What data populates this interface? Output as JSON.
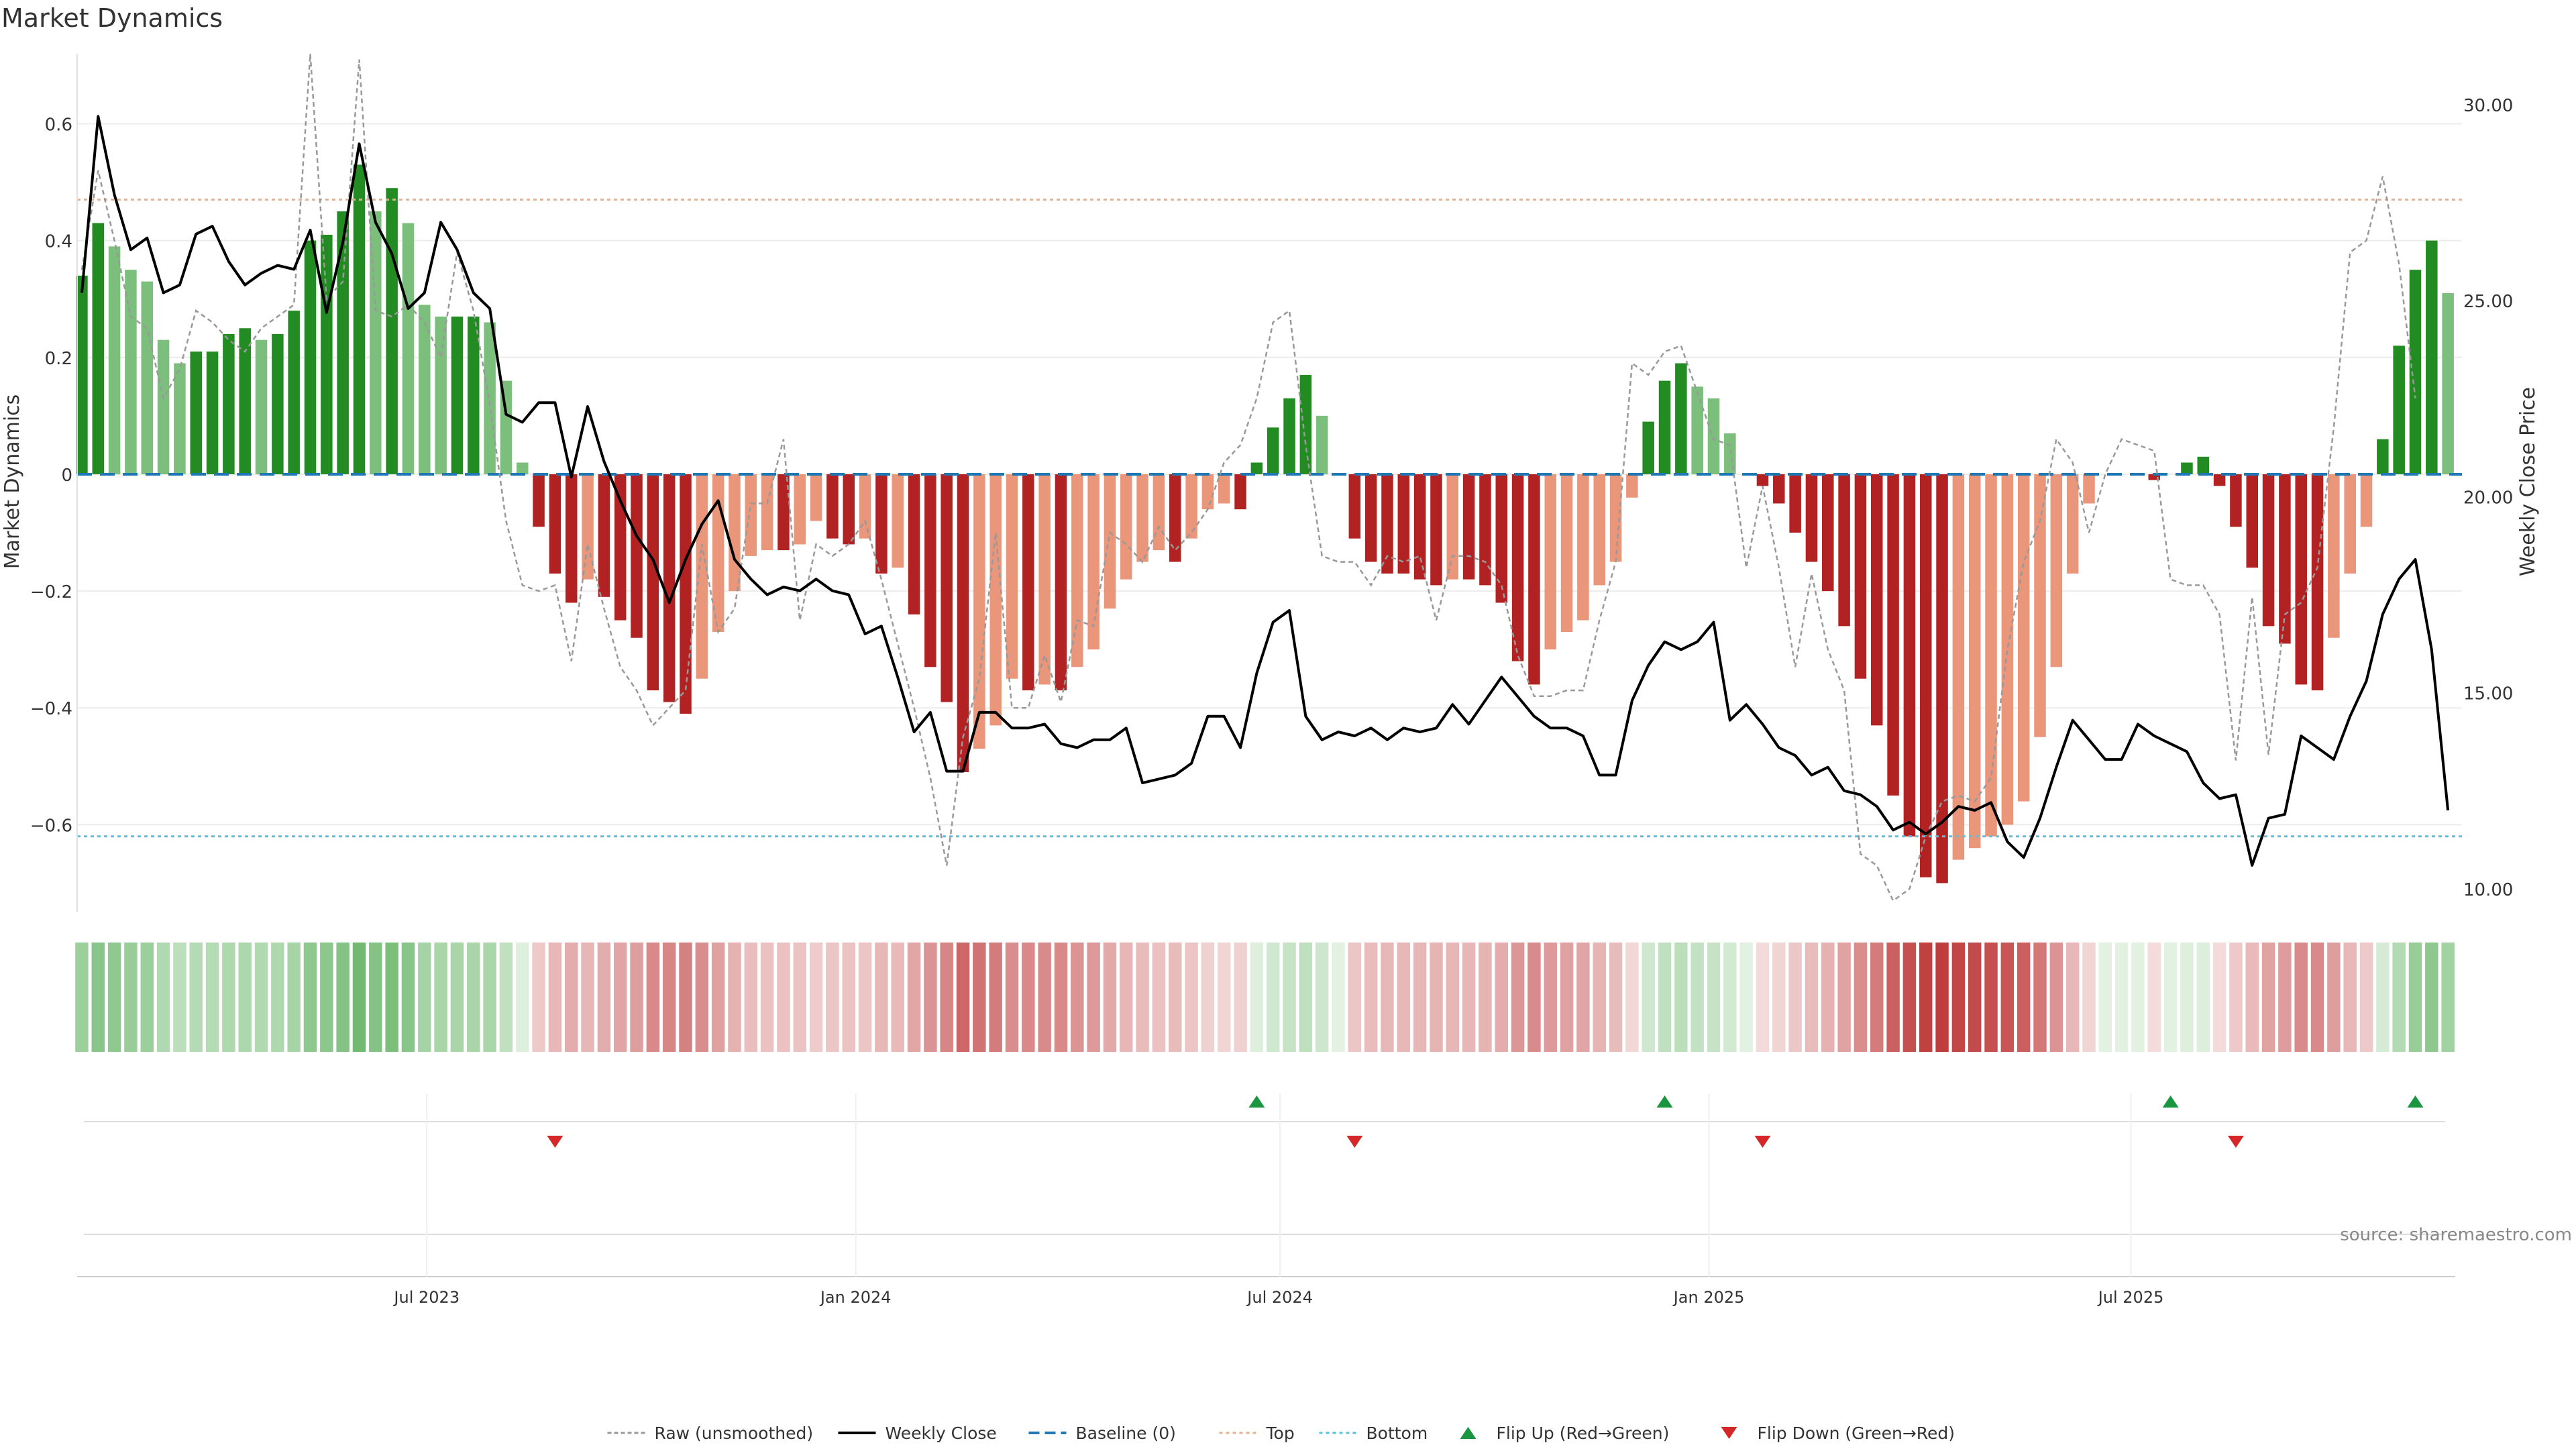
{
  "chart_data": {
    "type": "bar",
    "title": "Market Dynamics",
    "ylabel_left": "Market Dynamics",
    "ylabel_right": "Weekly Close Price",
    "source": "source: sharemaestro.com",
    "ylim_left": [
      -0.75,
      0.72
    ],
    "ylim_right": [
      9.4,
      31.3
    ],
    "yticks_left": [
      {
        "v": 0.6,
        "label": "0.6"
      },
      {
        "v": 0.4,
        "label": "0.4"
      },
      {
        "v": 0.2,
        "label": "0.2"
      },
      {
        "v": 0,
        "label": "0"
      },
      {
        "v": -0.2,
        "label": "−0.2"
      },
      {
        "v": -0.4,
        "label": "−0.4"
      },
      {
        "v": -0.6,
        "label": "−0.6"
      }
    ],
    "yticks_right": [
      {
        "v": 30,
        "label": "30.00"
      },
      {
        "v": 25,
        "label": "25.00"
      },
      {
        "v": 20,
        "label": "20.00"
      },
      {
        "v": 15,
        "label": "15.00"
      },
      {
        "v": 10,
        "label": "10.00"
      }
    ],
    "x_range": [
      "2023-02-01",
      "2025-11-20"
    ],
    "xticks": [
      {
        "date": "2023-07-01",
        "label": "Jul 2023"
      },
      {
        "date": "2024-01-01",
        "label": "Jan 2024"
      },
      {
        "date": "2024-07-01",
        "label": "Jul 2024"
      },
      {
        "date": "2025-01-01",
        "label": "Jan 2025"
      },
      {
        "date": "2025-07-01",
        "label": "Jul 2025"
      }
    ],
    "start_week": "2023-02-03",
    "top_line": 0.47,
    "bottom_line": -0.62,
    "baseline": 0,
    "colors": {
      "dark_green": "#228b22",
      "light_green": "#7cbf7c",
      "dark_red": "#b22222",
      "light_red": "#e9967a",
      "close": "#000000",
      "raw": "#999999",
      "top": "#e6b08f",
      "bottom": "#5bc0de",
      "baseline": "#1f77b4",
      "flip_up": "#1a9641",
      "flip_down": "#d62728"
    },
    "dynamics": [
      0.34,
      0.43,
      0.39,
      0.35,
      0.33,
      0.23,
      0.19,
      0.21,
      0.21,
      0.24,
      0.25,
      0.23,
      0.24,
      0.28,
      0.4,
      0.41,
      0.45,
      0.53,
      0.45,
      0.49,
      0.43,
      0.29,
      0.27,
      0.27,
      0.27,
      0.26,
      0.16,
      0.02,
      -0.09,
      -0.17,
      -0.22,
      -0.18,
      -0.21,
      -0.25,
      -0.28,
      -0.37,
      -0.39,
      -0.41,
      -0.35,
      -0.27,
      -0.2,
      -0.14,
      -0.13,
      -0.13,
      -0.12,
      -0.08,
      -0.11,
      -0.12,
      -0.11,
      -0.17,
      -0.16,
      -0.24,
      -0.33,
      -0.39,
      -0.51,
      -0.47,
      -0.43,
      -0.35,
      -0.37,
      -0.36,
      -0.37,
      -0.33,
      -0.3,
      -0.23,
      -0.18,
      -0.15,
      -0.13,
      -0.15,
      -0.11,
      -0.06,
      -0.05,
      -0.06,
      0.02,
      0.08,
      0.13,
      0.17,
      0.1,
      0.0,
      -0.11,
      -0.15,
      -0.17,
      -0.17,
      -0.18,
      -0.19,
      -0.18,
      -0.18,
      -0.19,
      -0.22,
      -0.32,
      -0.36,
      -0.3,
      -0.27,
      -0.25,
      -0.19,
      -0.15,
      -0.04,
      0.09,
      0.16,
      0.19,
      0.15,
      0.13,
      0.07,
      0.0,
      -0.02,
      -0.05,
      -0.1,
      -0.15,
      -0.2,
      -0.26,
      -0.35,
      -0.43,
      -0.55,
      -0.62,
      -0.69,
      -0.7,
      -0.66,
      -0.64,
      -0.62,
      -0.6,
      -0.56,
      -0.45,
      -0.33,
      -0.17,
      -0.05,
      0.0,
      0.0,
      0.0,
      -0.01,
      0.0,
      0.02,
      0.03,
      -0.02,
      -0.09,
      -0.16,
      -0.26,
      -0.29,
      -0.36,
      -0.37,
      -0.28,
      -0.17,
      -0.09,
      0.06,
      0.22,
      0.35,
      0.4,
      0.31
    ],
    "close": [
      25.2,
      29.7,
      27.7,
      26.3,
      26.6,
      25.2,
      25.4,
      26.7,
      26.9,
      26.0,
      25.4,
      25.7,
      25.9,
      25.8,
      26.8,
      24.7,
      26.5,
      29.0,
      27.0,
      26.2,
      24.8,
      25.2,
      27.0,
      26.3,
      25.2,
      24.8,
      22.1,
      21.9,
      22.4,
      22.4,
      20.5,
      22.3,
      20.9,
      19.9,
      19.0,
      18.4,
      17.3,
      18.4,
      19.3,
      19.9,
      18.4,
      17.9,
      17.5,
      17.7,
      17.6,
      17.9,
      17.6,
      17.5,
      16.5,
      16.7,
      15.4,
      14.0,
      14.5,
      13.0,
      13.0,
      14.5,
      14.5,
      14.1,
      14.1,
      14.2,
      13.7,
      13.6,
      13.8,
      13.8,
      14.1,
      12.7,
      12.8,
      12.9,
      13.2,
      14.4,
      14.4,
      13.6,
      15.5,
      16.8,
      17.1,
      14.4,
      13.8,
      14.0,
      13.9,
      14.1,
      13.8,
      14.1,
      14.0,
      14.1,
      14.7,
      14.2,
      14.8,
      15.4,
      14.9,
      14.4,
      14.1,
      14.1,
      13.9,
      12.9,
      12.9,
      14.8,
      15.7,
      16.3,
      16.1,
      16.3,
      16.8,
      14.3,
      14.7,
      14.2,
      13.6,
      13.4,
      12.9,
      13.1,
      12.5,
      12.4,
      12.1,
      11.5,
      11.7,
      11.4,
      11.7,
      12.1,
      12.0,
      12.2,
      11.2,
      10.8,
      11.8,
      13.1,
      14.3,
      13.8,
      13.3,
      13.3,
      14.2,
      13.9,
      13.7,
      13.5,
      12.7,
      12.3,
      12.4,
      10.6,
      11.8,
      11.9,
      13.9,
      13.6,
      13.3,
      14.4,
      15.3,
      17.0,
      17.9,
      18.4,
      16.1,
      12.0
    ],
    "raw": [
      0.35,
      0.52,
      0.4,
      0.27,
      0.25,
      0.13,
      0.18,
      0.28,
      0.26,
      0.23,
      0.21,
      0.25,
      0.27,
      0.29,
      0.72,
      0.3,
      0.33,
      0.71,
      0.28,
      0.27,
      0.29,
      0.26,
      0.2,
      0.38,
      0.28,
      0.12,
      -0.08,
      -0.19,
      -0.2,
      -0.19,
      -0.32,
      -0.12,
      -0.23,
      -0.33,
      -0.37,
      -0.43,
      -0.4,
      -0.37,
      -0.12,
      -0.27,
      -0.23,
      -0.05,
      -0.05,
      0.06,
      -0.25,
      -0.12,
      -0.14,
      -0.12,
      -0.08,
      -0.18,
      -0.29,
      -0.4,
      -0.52,
      -0.67,
      -0.45,
      -0.35,
      -0.1,
      -0.4,
      -0.4,
      -0.31,
      -0.39,
      -0.25,
      -0.26,
      -0.1,
      -0.12,
      -0.15,
      -0.09,
      -0.13,
      -0.1,
      -0.06,
      0.02,
      0.05,
      0.13,
      0.26,
      0.28,
      0.05,
      -0.14,
      -0.15,
      -0.15,
      -0.19,
      -0.14,
      -0.15,
      -0.14,
      -0.25,
      -0.14,
      -0.14,
      -0.15,
      -0.19,
      -0.31,
      -0.38,
      -0.38,
      -0.37,
      -0.37,
      -0.25,
      -0.15,
      0.19,
      0.17,
      0.21,
      0.22,
      0.14,
      0.06,
      0.05,
      -0.16,
      -0.02,
      -0.16,
      -0.33,
      -0.17,
      -0.3,
      -0.37,
      -0.65,
      -0.67,
      -0.73,
      -0.71,
      -0.62,
      -0.56,
      -0.55,
      -0.56,
      -0.52,
      -0.3,
      -0.15,
      -0.08,
      0.06,
      0.02,
      -0.1,
      0.0,
      0.06,
      0.05,
      0.04,
      -0.18,
      -0.19,
      -0.19,
      -0.24,
      -0.49,
      -0.21,
      -0.48,
      -0.24,
      -0.22,
      -0.16,
      0.08,
      0.38,
      0.4,
      0.51,
      0.36,
      0.13
    ]
  },
  "flip_up_weeks": [
    72,
    97,
    128,
    143
  ],
  "flip_down_weeks": [
    29,
    78,
    103,
    132
  ],
  "legend": [
    {
      "kind": "raw",
      "label": "Raw (unsmoothed)"
    },
    {
      "kind": "close",
      "label": "Weekly Close"
    },
    {
      "kind": "baseline",
      "label": "Baseline (0)"
    },
    {
      "kind": "top",
      "label": "Top"
    },
    {
      "kind": "bottom",
      "label": "Bottom"
    },
    {
      "kind": "flipup",
      "label": "Flip Up (Red→Green)"
    },
    {
      "kind": "flipdown",
      "label": "Flip Down (Green→Red)"
    }
  ]
}
